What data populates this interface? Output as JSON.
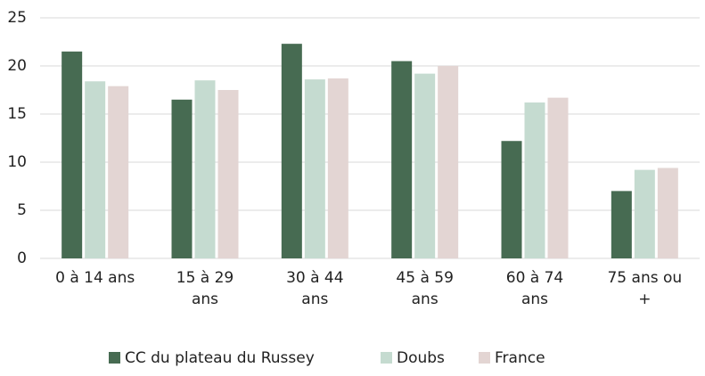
{
  "chart_data": {
    "type": "bar",
    "categories": [
      "0 à 14 ans",
      "15 à 29 ans",
      "30 à 44 ans",
      "45 à 59 ans",
      "60 à 74 ans",
      "75 ans ou +"
    ],
    "series": [
      {
        "name": "CC du plateau du Russey",
        "color": "#476b52",
        "values": [
          21.5,
          16.5,
          22.3,
          20.5,
          12.2,
          7.0
        ]
      },
      {
        "name": "Doubs",
        "color": "#c5dbd0",
        "values": [
          18.4,
          18.5,
          18.6,
          19.2,
          16.2,
          9.2
        ]
      },
      {
        "name": "France",
        "color": "#e3d5d3",
        "values": [
          17.9,
          17.5,
          18.7,
          20.0,
          16.7,
          9.4
        ]
      }
    ],
    "ylim": [
      0,
      25
    ],
    "yticks": [
      0,
      5,
      10,
      15,
      20,
      25
    ],
    "grid": true,
    "legend": "bottom"
  }
}
